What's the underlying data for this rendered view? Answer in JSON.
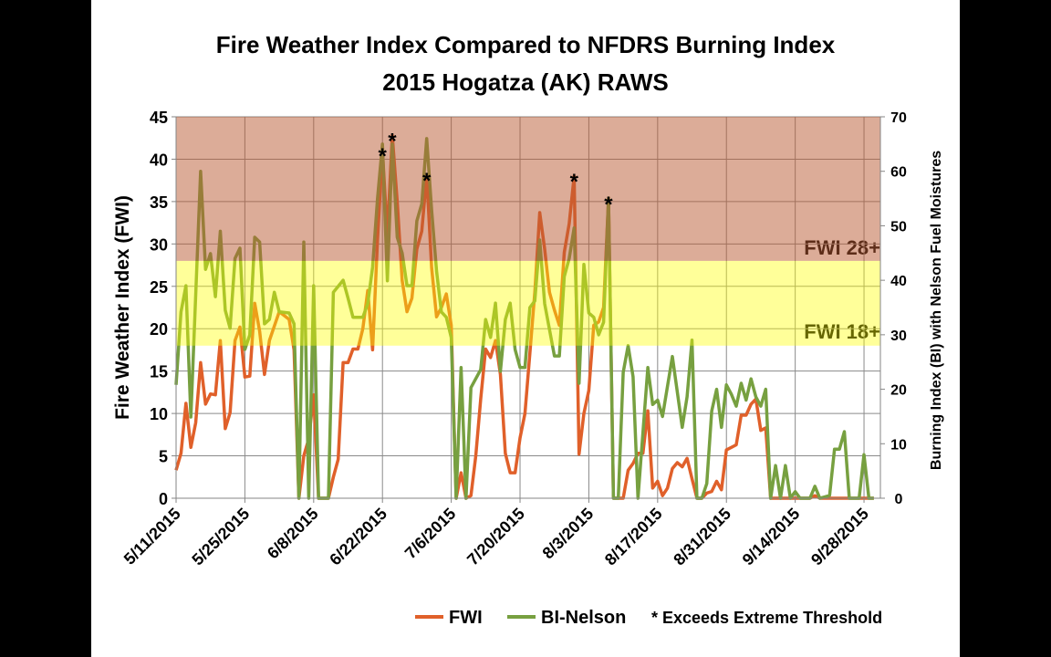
{
  "chart_data": {
    "type": "line",
    "title": "Fire Weather Index Compared to NFDRS Burning Index",
    "subtitle": "2015 Hogatza (AK) RAWS",
    "ylabel": "Fire Weather Index (FWI)",
    "y2label": "Burning Index (BI) with Nelson Fuel Moistures",
    "ylim": [
      0,
      45
    ],
    "yticks": [
      0,
      5,
      10,
      15,
      20,
      25,
      30,
      35,
      40,
      45
    ],
    "y2lim": [
      0,
      70
    ],
    "y2ticks": [
      0,
      10,
      20,
      30,
      40,
      50,
      60,
      70
    ],
    "xlim": [
      "2015-05-11",
      "2015-10-01"
    ],
    "xticks": [
      "2015-05-11",
      "2015-05-25",
      "2015-06-08",
      "2015-06-22",
      "2015-07-06",
      "2015-07-20",
      "2015-08-03",
      "2015-08-17",
      "2015-08-31",
      "2015-09-14",
      "2015-09-28"
    ],
    "xtick_labels": [
      "5/11/2015",
      "5/25/2015",
      "6/8/2015",
      "6/22/2015",
      "7/6/2015",
      "7/20/2015",
      "8/3/2015",
      "8/17/2015",
      "8/31/2015",
      "9/14/2015",
      "9/28/2015"
    ],
    "grid": true,
    "legend_position": "bottom",
    "bands": [
      {
        "label": "FWI 28+",
        "from": 28,
        "to": 45,
        "color": "#b95a32"
      },
      {
        "label": "FWI 18+",
        "from": 18,
        "to": 28,
        "color": "#ffff00"
      }
    ],
    "series": [
      {
        "name": "FWI",
        "axis": "left",
        "color": "#e0602a",
        "points": [
          [
            0,
            3.3
          ],
          [
            1,
            5.3
          ],
          [
            2,
            11.2
          ],
          [
            3,
            6
          ],
          [
            4,
            8.9
          ],
          [
            5,
            16
          ],
          [
            6,
            11.1
          ],
          [
            7,
            12.3
          ],
          [
            8,
            12.2
          ],
          [
            9,
            18.6
          ],
          [
            10,
            8.2
          ],
          [
            11,
            10.1
          ],
          [
            12,
            18.6
          ],
          [
            13,
            20.2
          ],
          [
            14,
            14.3
          ],
          [
            15,
            14.4
          ],
          [
            16,
            23
          ],
          [
            17,
            19.7
          ],
          [
            18,
            14.6
          ],
          [
            19,
            18.6
          ],
          [
            21,
            22
          ],
          [
            23,
            21.1
          ],
          [
            24,
            17.5
          ],
          [
            25,
            0
          ],
          [
            26,
            5
          ],
          [
            27,
            7
          ],
          [
            28,
            12.2
          ],
          [
            29,
            0
          ],
          [
            31,
            0
          ],
          [
            32,
            2.5
          ],
          [
            33,
            4.6
          ],
          [
            34,
            16
          ],
          [
            35,
            16
          ],
          [
            36,
            17.6
          ],
          [
            37,
            17.6
          ],
          [
            38,
            20
          ],
          [
            39,
            24.5
          ],
          [
            40,
            17.5
          ],
          [
            41,
            30.5
          ],
          [
            42,
            41
          ],
          [
            43,
            31
          ],
          [
            44,
            42.8
          ],
          [
            45,
            35
          ],
          [
            46,
            25.7
          ],
          [
            47,
            22
          ],
          [
            48,
            23.6
          ],
          [
            49,
            29.4
          ],
          [
            50,
            31.5
          ],
          [
            51,
            38.1
          ],
          [
            52,
            27.2
          ],
          [
            53,
            21.4
          ],
          [
            54,
            22.5
          ],
          [
            55,
            24.1
          ],
          [
            56,
            20.4
          ],
          [
            57,
            0
          ],
          [
            58,
            3
          ],
          [
            59,
            0
          ],
          [
            60,
            0.3
          ],
          [
            61,
            5
          ],
          [
            62,
            11.7
          ],
          [
            63,
            17.6
          ],
          [
            64,
            16.6
          ],
          [
            65,
            18.6
          ],
          [
            66,
            14.6
          ],
          [
            67,
            5.3
          ],
          [
            68,
            3
          ],
          [
            69,
            3
          ],
          [
            70,
            7.1
          ],
          [
            71,
            10
          ],
          [
            72,
            17.1
          ],
          [
            73,
            24.3
          ],
          [
            74,
            33.7
          ],
          [
            75,
            29.4
          ],
          [
            76,
            24.3
          ],
          [
            77,
            22.2
          ],
          [
            78,
            20.4
          ],
          [
            79,
            29
          ],
          [
            80,
            32.4
          ],
          [
            81,
            38
          ],
          [
            82,
            5.2
          ],
          [
            83,
            10
          ],
          [
            84,
            12.7
          ],
          [
            85,
            20.4
          ],
          [
            86,
            20.8
          ],
          [
            87,
            22.5
          ],
          [
            88,
            35.3
          ],
          [
            89,
            0
          ],
          [
            91,
            0
          ],
          [
            92,
            3.3
          ],
          [
            93,
            4.1
          ],
          [
            94,
            5.3
          ],
          [
            95,
            5.3
          ],
          [
            96,
            10.3
          ],
          [
            97,
            1.2
          ],
          [
            98,
            2
          ],
          [
            99,
            0.3
          ],
          [
            100,
            1.2
          ],
          [
            101,
            3.5
          ],
          [
            102,
            4.2
          ],
          [
            103,
            3.7
          ],
          [
            104,
            4.7
          ],
          [
            105,
            2.3
          ],
          [
            106,
            0
          ],
          [
            107,
            0
          ],
          [
            108,
            0.6
          ],
          [
            109,
            0.8
          ],
          [
            110,
            2
          ],
          [
            111,
            1
          ],
          [
            112,
            5.7
          ],
          [
            113,
            6
          ],
          [
            114,
            6.3
          ],
          [
            115,
            9.8
          ],
          [
            116,
            9.8
          ],
          [
            117,
            11.1
          ],
          [
            118,
            11.7
          ],
          [
            119,
            8
          ],
          [
            120,
            8.3
          ],
          [
            121,
            0
          ],
          [
            129,
            0
          ],
          [
            130,
            0.3
          ],
          [
            131,
            0
          ],
          [
            142,
            0
          ]
        ]
      },
      {
        "name": "BI-Nelson",
        "axis": "right",
        "color": "#77a040",
        "points": [
          [
            0,
            20.8
          ],
          [
            1,
            34.2
          ],
          [
            2,
            39
          ],
          [
            3,
            14.9
          ],
          [
            5,
            60
          ],
          [
            6,
            42
          ],
          [
            7,
            44.9
          ],
          [
            8,
            37
          ],
          [
            9,
            49
          ],
          [
            10,
            34.5
          ],
          [
            11,
            31.2
          ],
          [
            12,
            44
          ],
          [
            13,
            45.9
          ],
          [
            14,
            27.3
          ],
          [
            15,
            30
          ],
          [
            16,
            47.9
          ],
          [
            17,
            47
          ],
          [
            18,
            32
          ],
          [
            19,
            32.8
          ],
          [
            20,
            37.8
          ],
          [
            21,
            34.2
          ],
          [
            23,
            34
          ],
          [
            24,
            32
          ],
          [
            25,
            0
          ],
          [
            26,
            47
          ],
          [
            27,
            0
          ],
          [
            28,
            39
          ],
          [
            29,
            0
          ],
          [
            31,
            0
          ],
          [
            32,
            37.8
          ],
          [
            34,
            40
          ],
          [
            35,
            36.7
          ],
          [
            36,
            33.2
          ],
          [
            37,
            33.2
          ],
          [
            38,
            33.2
          ],
          [
            39,
            35.7
          ],
          [
            40,
            42.4
          ],
          [
            41,
            55
          ],
          [
            42,
            65
          ],
          [
            43,
            39.9
          ],
          [
            44,
            65
          ],
          [
            45,
            47.9
          ],
          [
            46,
            45
          ],
          [
            47,
            39
          ],
          [
            48,
            39
          ],
          [
            49,
            50.9
          ],
          [
            50,
            54
          ],
          [
            51,
            66
          ],
          [
            52,
            52.9
          ],
          [
            53,
            41.7
          ],
          [
            54,
            34.2
          ],
          [
            55,
            33.2
          ],
          [
            56,
            29.5
          ],
          [
            57,
            0
          ],
          [
            58,
            24
          ],
          [
            59,
            0
          ],
          [
            60,
            20.3
          ],
          [
            62,
            23.6
          ],
          [
            63,
            32.8
          ],
          [
            64,
            29.5
          ],
          [
            65,
            35.8
          ],
          [
            66,
            23.3
          ],
          [
            67,
            32.8
          ],
          [
            68,
            35.8
          ],
          [
            69,
            27.3
          ],
          [
            70,
            24
          ],
          [
            71,
            24
          ],
          [
            72,
            35
          ],
          [
            73,
            36.2
          ],
          [
            74,
            47.4
          ],
          [
            75,
            35.7
          ],
          [
            77,
            26.1
          ],
          [
            78,
            26.1
          ],
          [
            79,
            40.7
          ],
          [
            80,
            44
          ],
          [
            81,
            49.6
          ],
          [
            82,
            21.1
          ],
          [
            83,
            42.9
          ],
          [
            84,
            34
          ],
          [
            85,
            33.2
          ],
          [
            86,
            30
          ],
          [
            87,
            32.3
          ],
          [
            88,
            55.1
          ],
          [
            89,
            0
          ],
          [
            90,
            0
          ],
          [
            91,
            23.1
          ],
          [
            92,
            28
          ],
          [
            93,
            22.3
          ],
          [
            94,
            0
          ],
          [
            96,
            24
          ],
          [
            97,
            17.2
          ],
          [
            98,
            18
          ],
          [
            99,
            15
          ],
          [
            101,
            26
          ],
          [
            103,
            13
          ],
          [
            104,
            18.6
          ],
          [
            105,
            29
          ],
          [
            106,
            0
          ],
          [
            107,
            0
          ],
          [
            108,
            2.7
          ],
          [
            109,
            16
          ],
          [
            110,
            20
          ],
          [
            111,
            13
          ],
          [
            112,
            20.8
          ],
          [
            113,
            19.1
          ],
          [
            114,
            16.9
          ],
          [
            115,
            21.1
          ],
          [
            116,
            18
          ],
          [
            117,
            21.9
          ],
          [
            118,
            18.6
          ],
          [
            119,
            16.9
          ],
          [
            120,
            20
          ],
          [
            121,
            0
          ],
          [
            122,
            6
          ],
          [
            123,
            0
          ],
          [
            124,
            6
          ],
          [
            125,
            0
          ],
          [
            126,
            1.2
          ],
          [
            127,
            0
          ],
          [
            129,
            0
          ],
          [
            130,
            2.2
          ],
          [
            131,
            0
          ],
          [
            133,
            0.5
          ],
          [
            134,
            9
          ],
          [
            135,
            9
          ],
          [
            136,
            12.2
          ],
          [
            137,
            0
          ],
          [
            139,
            0
          ],
          [
            140,
            8
          ],
          [
            141,
            0
          ],
          [
            142,
            0
          ]
        ]
      }
    ],
    "point_day_origin": "2015-05-11",
    "annotations": [
      {
        "text": "*",
        "date": "2015-06-22",
        "series": "FWI"
      },
      {
        "text": "*",
        "date": "2015-06-24",
        "series": "FWI"
      },
      {
        "text": "*",
        "date": "2015-07-01",
        "series": "FWI"
      },
      {
        "text": "*",
        "date": "2015-07-31",
        "series": "FWI"
      },
      {
        "text": "*",
        "date": "2015-08-07",
        "series": "FWI"
      }
    ],
    "legend": {
      "items": [
        "FWI",
        "BI-Nelson"
      ],
      "note": "* Exceeds Extreme Threshold"
    }
  }
}
